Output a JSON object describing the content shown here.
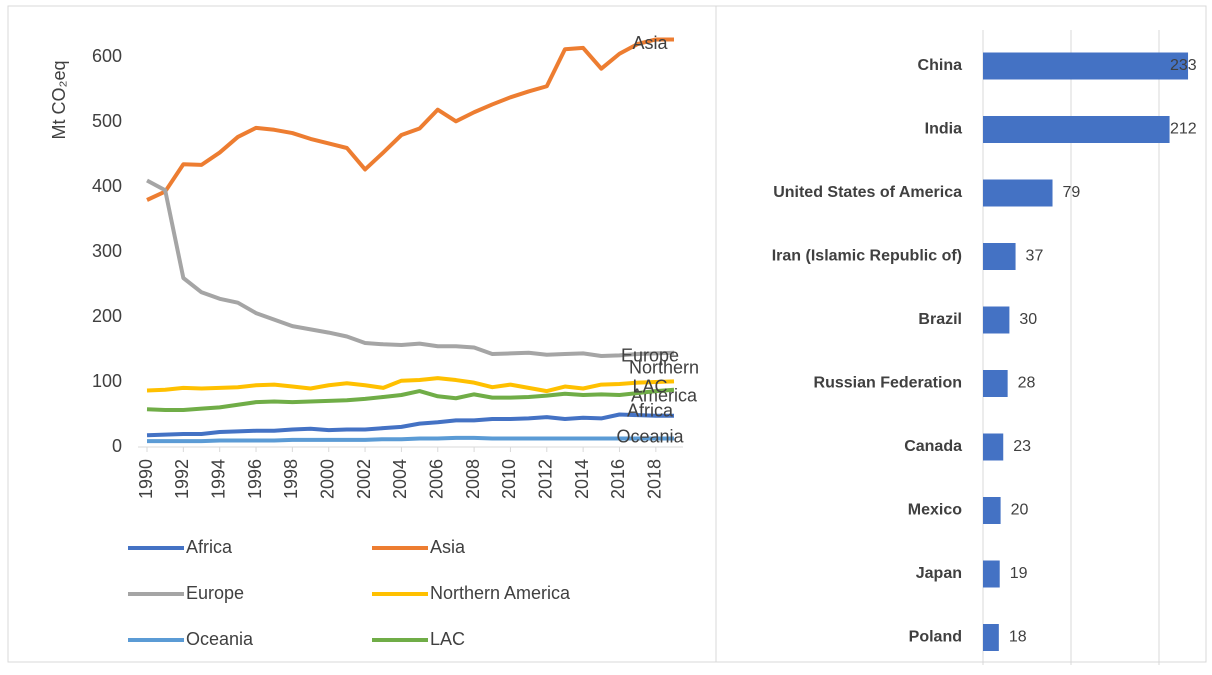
{
  "chart_data": [
    {
      "type": "line",
      "ylabel": "Mt CO₂eq",
      "x": [
        1990,
        1991,
        1992,
        1993,
        1994,
        1995,
        1996,
        1997,
        1998,
        1999,
        2000,
        2001,
        2002,
        2003,
        2004,
        2005,
        2006,
        2007,
        2008,
        2009,
        2010,
        2011,
        2012,
        2013,
        2014,
        2015,
        2016,
        2017,
        2018,
        2019
      ],
      "xlim": [
        1990,
        2019
      ],
      "xticks": [
        1990,
        1992,
        1994,
        1996,
        1998,
        2000,
        2002,
        2004,
        2006,
        2008,
        2010,
        2012,
        2014,
        2016,
        2018
      ],
      "ylim": [
        0,
        650
      ],
      "yticks": [
        0,
        100,
        200,
        300,
        400,
        500,
        600
      ],
      "series": [
        {
          "name": "Africa",
          "color": "#4472c4",
          "values": [
            18,
            19,
            20,
            20,
            23,
            24,
            25,
            25,
            27,
            28,
            26,
            27,
            27,
            29,
            31,
            36,
            38,
            41,
            41,
            43,
            43,
            44,
            46,
            43,
            45,
            44,
            50,
            49,
            48,
            48
          ]
        },
        {
          "name": "Asia",
          "color": "#ed7d31",
          "values": [
            380,
            393,
            435,
            434,
            453,
            477,
            491,
            488,
            483,
            474,
            467,
            460,
            427,
            453,
            480,
            490,
            519,
            501,
            515,
            527,
            538,
            547,
            555,
            612,
            614,
            582,
            605,
            620,
            627,
            627
          ]
        },
        {
          "name": "Europe",
          "color": "#a5a5a5",
          "values": [
            410,
            395,
            260,
            238,
            228,
            222,
            206,
            196,
            186,
            181,
            176,
            170,
            160,
            158,
            157,
            159,
            155,
            155,
            153,
            143,
            144,
            145,
            142,
            143,
            144,
            140,
            141,
            143,
            144,
            145
          ]
        },
        {
          "name": "Northern America",
          "color": "#ffc000",
          "values": [
            87,
            88,
            91,
            90,
            91,
            92,
            95,
            96,
            93,
            90,
            95,
            98,
            95,
            91,
            102,
            103,
            106,
            103,
            99,
            92,
            96,
            91,
            86,
            93,
            90,
            96,
            97,
            99,
            100,
            101
          ]
        },
        {
          "name": "Oceania",
          "color": "#5b9bd5",
          "values": [
            9,
            9,
            9,
            9,
            10,
            10,
            10,
            10,
            11,
            11,
            11,
            11,
            11,
            12,
            12,
            13,
            13,
            14,
            14,
            13,
            13,
            13,
            13,
            13,
            13,
            13,
            13,
            13,
            13,
            13
          ]
        },
        {
          "name": "LAC",
          "color": "#70ad47",
          "values": [
            58,
            57,
            57,
            59,
            61,
            65,
            69,
            70,
            69,
            70,
            71,
            72,
            74,
            77,
            80,
            86,
            78,
            75,
            81,
            76,
            76,
            77,
            79,
            82,
            80,
            81,
            80,
            83,
            86,
            88
          ]
        }
      ]
    },
    {
      "type": "barh",
      "color": "#4472c4",
      "categories": [
        "China",
        "India",
        "United States of America",
        "Iran (Islamic Republic of)",
        "Brazil",
        "Russian Federation",
        "Canada",
        "Mexico",
        "Japan",
        "Poland"
      ],
      "values": [
        233,
        212,
        79,
        37,
        30,
        28,
        23,
        20,
        19,
        18
      ],
      "xlim": [
        0,
        250
      ],
      "xticks": [
        0,
        100,
        200
      ],
      "grid": true
    }
  ]
}
